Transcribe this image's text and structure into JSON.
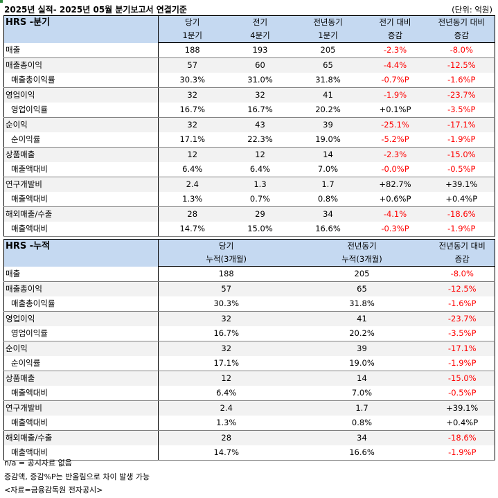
{
  "title": "2025년 실적- 2025년 05월 분기보고서 연결기준",
  "unit": "(단위: 억원)",
  "quarter_table": {
    "name": "HRS -분기",
    "headers": [
      [
        "당기",
        "1분기"
      ],
      [
        "전기",
        "4분기"
      ],
      [
        "전년동기",
        "1분기"
      ],
      [
        "전기 대비",
        "증감"
      ],
      [
        "전년동기 대비",
        "증감"
      ]
    ],
    "rows": [
      {
        "label": "매출",
        "sub": false,
        "values": [
          "188",
          "193",
          "205",
          "-2.3%",
          "-8.0%"
        ]
      },
      {
        "label": "매출총이익",
        "sub": false,
        "values": [
          "57",
          "60",
          "65",
          "-4.4%",
          "-12.5%"
        ]
      },
      {
        "label": "매출총이익률",
        "sub": true,
        "values": [
          "30.3%",
          "31.0%",
          "31.8%",
          "-0.7%P",
          "-1.6%P"
        ]
      },
      {
        "label": "영업이익",
        "sub": false,
        "values": [
          "32",
          "32",
          "41",
          "-1.9%",
          "-23.7%"
        ]
      },
      {
        "label": "영업이익률",
        "sub": true,
        "values": [
          "16.7%",
          "16.7%",
          "20.2%",
          "+0.1%P",
          "-3.5%P"
        ]
      },
      {
        "label": "순이익",
        "sub": false,
        "values": [
          "32",
          "43",
          "39",
          "-25.1%",
          "-17.1%"
        ]
      },
      {
        "label": "순이익률",
        "sub": true,
        "values": [
          "17.1%",
          "22.3%",
          "19.0%",
          "-5.2%P",
          "-1.9%P"
        ]
      },
      {
        "label": "상품매출",
        "sub": false,
        "values": [
          "12",
          "12",
          "14",
          "-2.3%",
          "-15.0%"
        ]
      },
      {
        "label": "매출액대비",
        "sub": true,
        "values": [
          "6.4%",
          "6.4%",
          "7.0%",
          "-0.0%P",
          "-0.5%P"
        ]
      },
      {
        "label": "연구개발비",
        "sub": false,
        "values": [
          "2.4",
          "1.3",
          "1.7",
          "+82.7%",
          "+39.1%"
        ]
      },
      {
        "label": "매출액대비",
        "sub": true,
        "values": [
          "1.3%",
          "0.7%",
          "0.8%",
          "+0.6%P",
          "+0.4%P"
        ]
      },
      {
        "label": "해외매출/수출",
        "sub": false,
        "values": [
          "28",
          "29",
          "34",
          "-4.1%",
          "-18.6%"
        ]
      },
      {
        "label": "매출액대비",
        "sub": true,
        "values": [
          "14.7%",
          "15.0%",
          "16.6%",
          "-0.3%P",
          "-1.9%P"
        ]
      }
    ]
  },
  "cumulative_table": {
    "name": "HRS -누적",
    "headers": [
      [
        "당기",
        "누적(3개월)"
      ],
      [
        "전년동기",
        "누적(3개월)"
      ],
      [
        "전년동기 대비",
        "증감"
      ]
    ],
    "rows": [
      {
        "label": "매출",
        "sub": false,
        "values": [
          "188",
          "205",
          "-8.0%"
        ]
      },
      {
        "label": "매출총이익",
        "sub": false,
        "values": [
          "57",
          "65",
          "-12.5%"
        ]
      },
      {
        "label": "매출총이익률",
        "sub": true,
        "values": [
          "30.3%",
          "31.8%",
          "-1.6%P"
        ]
      },
      {
        "label": "영업이익",
        "sub": false,
        "values": [
          "32",
          "41",
          "-23.7%"
        ]
      },
      {
        "label": "영업이익률",
        "sub": true,
        "values": [
          "16.7%",
          "20.2%",
          "-3.5%P"
        ]
      },
      {
        "label": "순이익",
        "sub": false,
        "values": [
          "32",
          "39",
          "-17.1%"
        ]
      },
      {
        "label": "순이익률",
        "sub": true,
        "values": [
          "17.1%",
          "19.0%",
          "-1.9%P"
        ]
      },
      {
        "label": "상품매출",
        "sub": false,
        "values": [
          "12",
          "14",
          "-15.0%"
        ]
      },
      {
        "label": "매출액대비",
        "sub": true,
        "values": [
          "6.4%",
          "7.0%",
          "-0.5%P"
        ]
      },
      {
        "label": "연구개발비",
        "sub": false,
        "values": [
          "2.4",
          "1.7",
          "+39.1%"
        ]
      },
      {
        "label": "매출액대비",
        "sub": true,
        "values": [
          "1.3%",
          "0.8%",
          "+0.4%P"
        ]
      },
      {
        "label": "해외매출/수출",
        "sub": false,
        "values": [
          "28",
          "34",
          "-18.6%"
        ]
      },
      {
        "label": "매출액대비",
        "sub": true,
        "values": [
          "14.7%",
          "16.6%",
          "-1.9%P"
        ]
      }
    ]
  },
  "notes": [
    "n/a = 공시자료 없음",
    "증감액, 증감%P는 반올림으로 차이 발생 가능",
    "<자료=금융감독원 전자공시>"
  ],
  "colors": {
    "header_bg": "#c5d9f1",
    "negative": "#ff0000",
    "row_shade": "#f2f2f2"
  }
}
